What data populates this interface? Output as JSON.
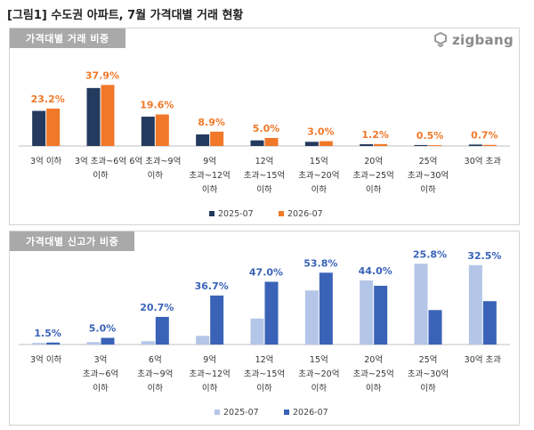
{
  "figure_title": "[그림1] 수도권 아파트, 7월 가격대별 거래 현황",
  "logo": {
    "text": "zigbang",
    "icon": "zigbang-logo-icon"
  },
  "colors": {
    "p1_2025": "#243a5e",
    "p1_2026": "#f07828",
    "p1_label": "#f07828",
    "p2_2025": "#b4c6e7",
    "p2_2026": "#3a63b8",
    "p2_label": "#3a63b8",
    "baseline": "#bfbfbf",
    "category_text": "#333333"
  },
  "chart_data": [
    {
      "type": "bar",
      "title": "가격대별 거래 비중",
      "categories": [
        [
          "3억 이하"
        ],
        [
          "3억 초과~6억",
          "이하"
        ],
        [
          "6억 초과~9억",
          "이하"
        ],
        [
          "9억",
          "초과~12억",
          "이하"
        ],
        [
          "12억",
          "초과~15억",
          "이하"
        ],
        [
          "15억",
          "초과~20억",
          "이하"
        ],
        [
          "20억",
          "초과~25억",
          "이하"
        ],
        [
          "25억",
          "초과~30억",
          "이하"
        ],
        [
          "30억 초과"
        ]
      ],
      "series": [
        {
          "name": "2025-07",
          "values": [
            21.8,
            36.0,
            18.2,
            7.2,
            3.5,
            2.6,
            1.1,
            0.6,
            0.9
          ]
        },
        {
          "name": "2026-07",
          "values": [
            23.2,
            37.9,
            19.6,
            8.9,
            5.0,
            3.0,
            1.2,
            0.5,
            0.7
          ]
        }
      ],
      "data_labels": [
        "23.2%",
        "37.9%",
        "19.6%",
        "8.9%",
        "5.0%",
        "3.0%",
        "1.2%",
        "0.5%",
        "0.7%"
      ],
      "ylim": [
        0,
        42
      ],
      "grid": false,
      "legend_position": "bottom-center"
    },
    {
      "type": "bar",
      "title": "가격대별 신고가 비중",
      "categories": [
        [
          "3억 이하"
        ],
        [
          "3억",
          "초과~6억",
          "이하"
        ],
        [
          "6억",
          "초과~9억",
          "이하"
        ],
        [
          "9억",
          "초과~12억",
          "이하"
        ],
        [
          "12억",
          "초과~15억",
          "이하"
        ],
        [
          "15억",
          "초과~20억",
          "이하"
        ],
        [
          "20억",
          "초과~25억",
          "이하"
        ],
        [
          "25억",
          "초과~30억",
          "이하"
        ],
        [
          "30억 초과"
        ]
      ],
      "series": [
        {
          "name": "2025-07",
          "values": [
            1.2,
            1.8,
            2.5,
            6.5,
            19.5,
            40.5,
            48.0,
            60.5,
            59.5
          ]
        },
        {
          "name": "2026-07",
          "values": [
            1.5,
            5.0,
            20.7,
            36.7,
            47.0,
            53.8,
            44.0,
            25.8,
            32.5
          ]
        }
      ],
      "data_labels": [
        "1.5%",
        "5.0%",
        "20.7%",
        "36.7%",
        "47.0%",
        "53.8%",
        "44.0%",
        "25.8%",
        "32.5%"
      ],
      "ylim": [
        0,
        64
      ],
      "grid": false,
      "legend_position": "bottom-center"
    }
  ]
}
